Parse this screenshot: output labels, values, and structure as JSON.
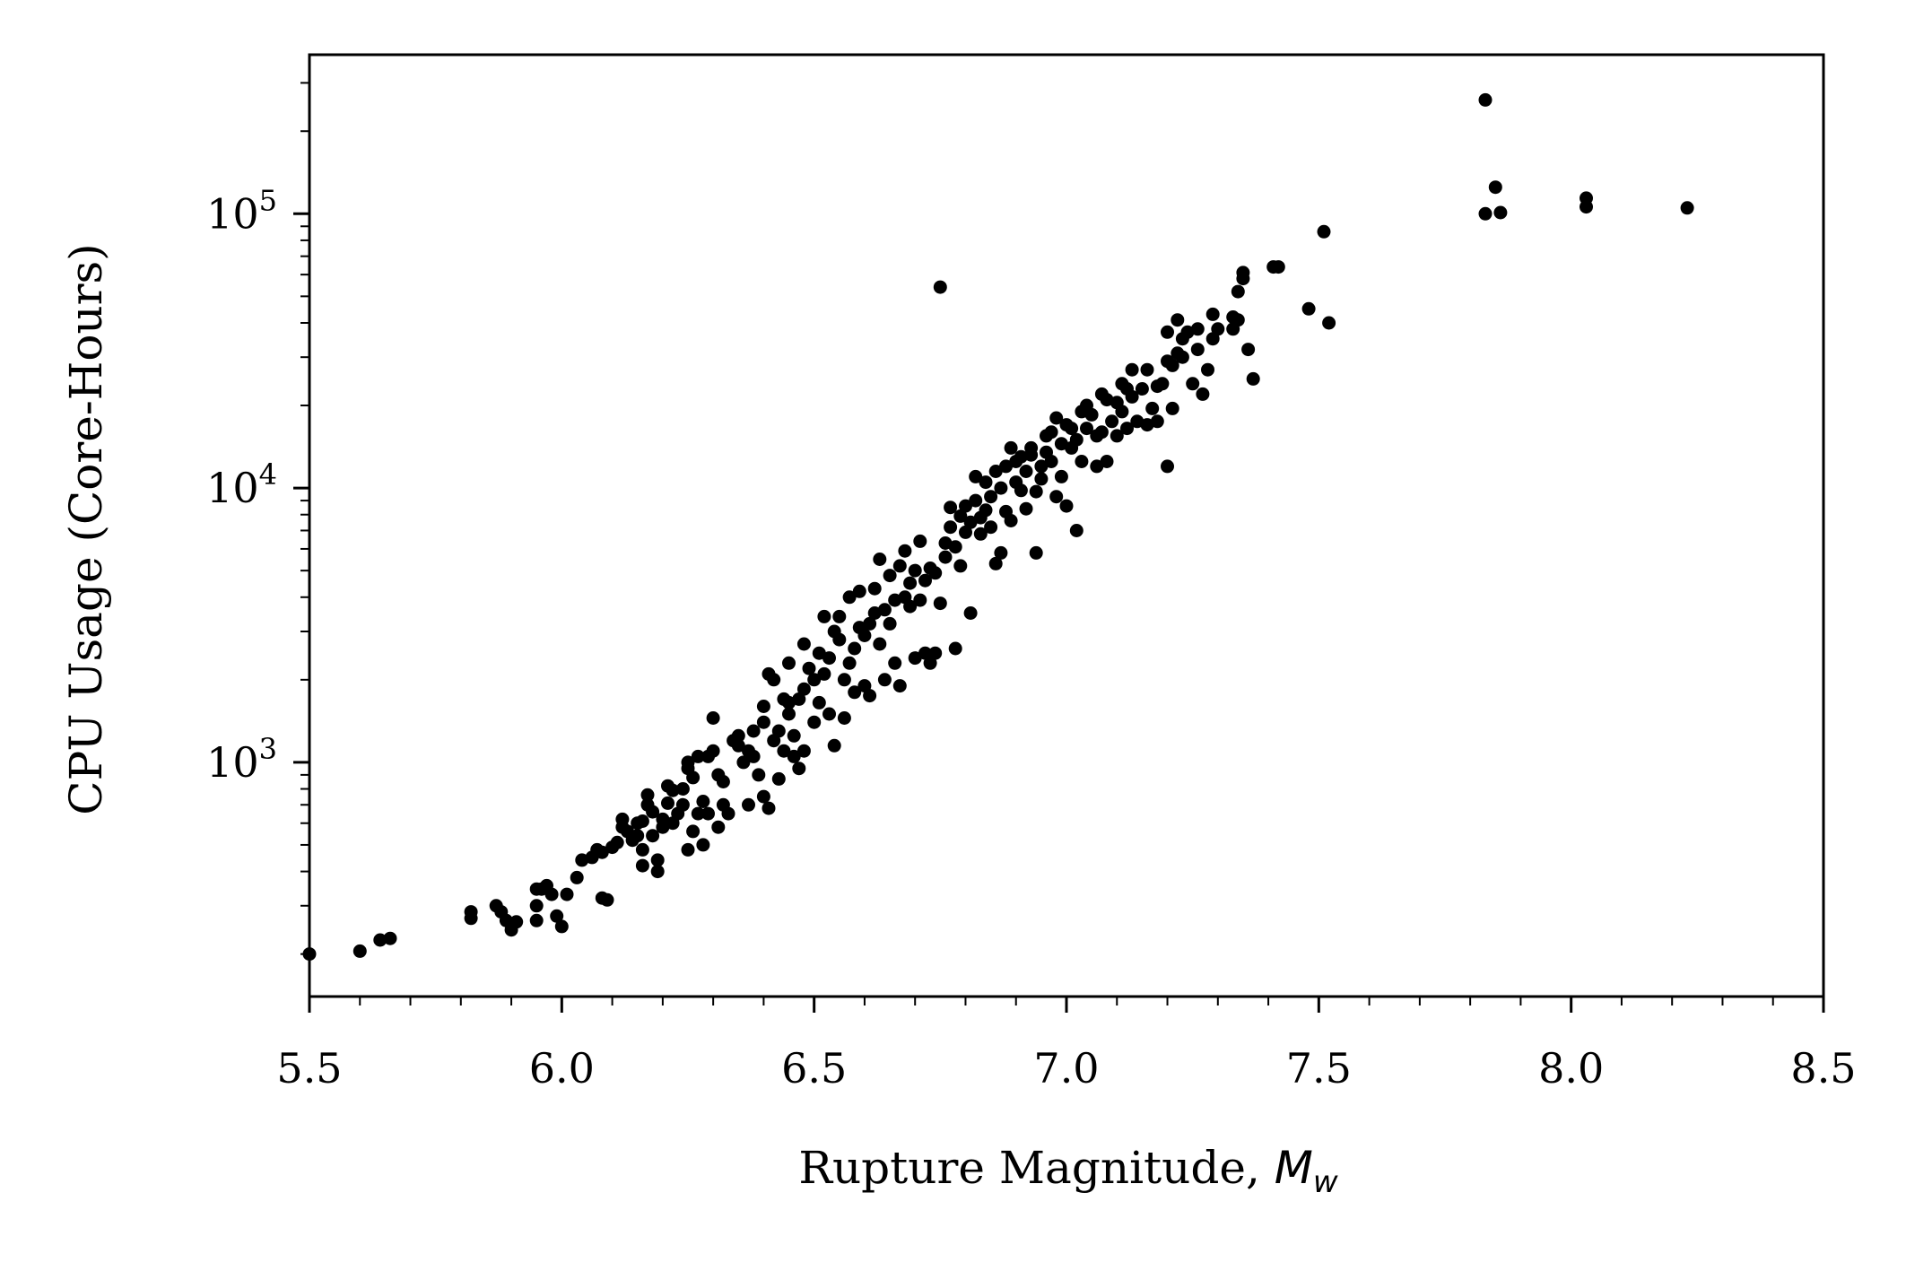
{
  "chart_data": {
    "type": "scatter",
    "title": "",
    "xlabel": "Rupture Magnitude, ",
    "xlabel_math": "M",
    "xlabel_sub": "w",
    "ylabel": "CPU Usage (Core-Hours)",
    "xlim": [
      5.5,
      8.5
    ],
    "ylim": [
      140,
      380000
    ],
    "y_scale": "log",
    "grid": false,
    "marker_color": "#000000",
    "x_ticks": [
      "5.5",
      "6.0",
      "6.5",
      "7.0",
      "7.5",
      "8.0",
      "8.5"
    ],
    "y_ticks": [
      {
        "base": "10",
        "exp": "3",
        "value": 1000
      },
      {
        "base": "10",
        "exp": "4",
        "value": 10000
      },
      {
        "base": "10",
        "exp": "5",
        "value": 100000
      }
    ],
    "series": [
      {
        "points": [
          [
            5.5,
            200
          ],
          [
            5.6,
            205
          ],
          [
            5.64,
            225
          ],
          [
            5.66,
            228
          ],
          [
            5.82,
            270
          ],
          [
            5.82,
            285
          ],
          [
            5.87,
            300
          ],
          [
            5.88,
            285
          ],
          [
            5.89,
            265
          ],
          [
            5.9,
            245
          ],
          [
            5.91,
            262
          ],
          [
            5.95,
            265
          ],
          [
            5.95,
            300
          ],
          [
            5.95,
            345
          ],
          [
            5.96,
            345
          ],
          [
            5.97,
            355
          ],
          [
            5.98,
            330
          ],
          [
            5.99,
            275
          ],
          [
            6.0,
            252
          ],
          [
            6.01,
            330
          ],
          [
            6.03,
            380
          ],
          [
            6.04,
            440
          ],
          [
            6.06,
            450
          ],
          [
            6.07,
            480
          ],
          [
            6.08,
            470
          ],
          [
            6.08,
            320
          ],
          [
            6.09,
            315
          ],
          [
            6.1,
            490
          ],
          [
            6.11,
            510
          ],
          [
            6.12,
            580
          ],
          [
            6.12,
            620
          ],
          [
            6.13,
            560
          ],
          [
            6.14,
            520
          ],
          [
            6.15,
            540
          ],
          [
            6.15,
            600
          ],
          [
            6.16,
            610
          ],
          [
            6.16,
            480
          ],
          [
            6.16,
            420
          ],
          [
            6.17,
            700
          ],
          [
            6.17,
            760
          ],
          [
            6.18,
            540
          ],
          [
            6.18,
            660
          ],
          [
            6.19,
            400
          ],
          [
            6.19,
            440
          ],
          [
            6.2,
            580
          ],
          [
            6.2,
            620
          ],
          [
            6.21,
            820
          ],
          [
            6.21,
            710
          ],
          [
            6.22,
            790
          ],
          [
            6.22,
            600
          ],
          [
            6.23,
            650
          ],
          [
            6.24,
            700
          ],
          [
            6.24,
            800
          ],
          [
            6.25,
            950
          ],
          [
            6.25,
            1000
          ],
          [
            6.25,
            480
          ],
          [
            6.26,
            560
          ],
          [
            6.26,
            880
          ],
          [
            6.27,
            650
          ],
          [
            6.27,
            1050
          ],
          [
            6.28,
            720
          ],
          [
            6.28,
            500
          ],
          [
            6.29,
            650
          ],
          [
            6.29,
            1050
          ],
          [
            6.3,
            1100
          ],
          [
            6.3,
            1450
          ],
          [
            6.31,
            900
          ],
          [
            6.31,
            580
          ],
          [
            6.32,
            700
          ],
          [
            6.32,
            850
          ],
          [
            6.33,
            650
          ],
          [
            6.34,
            1200
          ],
          [
            6.35,
            1150
          ],
          [
            6.35,
            1250
          ],
          [
            6.36,
            1000
          ],
          [
            6.37,
            1100
          ],
          [
            6.37,
            700
          ],
          [
            6.38,
            1050
          ],
          [
            6.38,
            1300
          ],
          [
            6.39,
            900
          ],
          [
            6.4,
            1600
          ],
          [
            6.4,
            1400
          ],
          [
            6.4,
            750
          ],
          [
            6.41,
            2100
          ],
          [
            6.41,
            680
          ],
          [
            6.42,
            1200
          ],
          [
            6.42,
            2000
          ],
          [
            6.43,
            1300
          ],
          [
            6.43,
            870
          ],
          [
            6.44,
            1700
          ],
          [
            6.44,
            1100
          ],
          [
            6.45,
            1650
          ],
          [
            6.45,
            1500
          ],
          [
            6.45,
            2300
          ],
          [
            6.46,
            1050
          ],
          [
            6.46,
            1250
          ],
          [
            6.47,
            1700
          ],
          [
            6.47,
            950
          ],
          [
            6.48,
            1850
          ],
          [
            6.48,
            2700
          ],
          [
            6.48,
            1100
          ],
          [
            6.49,
            2200
          ],
          [
            6.5,
            1400
          ],
          [
            6.5,
            2000
          ],
          [
            6.51,
            1650
          ],
          [
            6.51,
            2500
          ],
          [
            6.52,
            3400
          ],
          [
            6.52,
            2100
          ],
          [
            6.53,
            1500
          ],
          [
            6.53,
            2400
          ],
          [
            6.54,
            3000
          ],
          [
            6.54,
            1150
          ],
          [
            6.55,
            2800
          ],
          [
            6.55,
            3400
          ],
          [
            6.56,
            2000
          ],
          [
            6.56,
            1450
          ],
          [
            6.57,
            2300
          ],
          [
            6.57,
            4000
          ],
          [
            6.58,
            2600
          ],
          [
            6.58,
            1800
          ],
          [
            6.59,
            3100
          ],
          [
            6.59,
            4200
          ],
          [
            6.6,
            2900
          ],
          [
            6.6,
            1900
          ],
          [
            6.61,
            3200
          ],
          [
            6.61,
            1750
          ],
          [
            6.62,
            3500
          ],
          [
            6.62,
            4300
          ],
          [
            6.63,
            2700
          ],
          [
            6.63,
            5500
          ],
          [
            6.64,
            3600
          ],
          [
            6.64,
            2000
          ],
          [
            6.65,
            3200
          ],
          [
            6.65,
            4800
          ],
          [
            6.66,
            3900
          ],
          [
            6.66,
            2300
          ],
          [
            6.67,
            5200
          ],
          [
            6.67,
            1900
          ],
          [
            6.68,
            4000
          ],
          [
            6.68,
            5900
          ],
          [
            6.69,
            3700
          ],
          [
            6.69,
            4500
          ],
          [
            6.7,
            5000
          ],
          [
            6.7,
            2400
          ],
          [
            6.71,
            6400
          ],
          [
            6.71,
            3900
          ],
          [
            6.72,
            2500
          ],
          [
            6.72,
            4600
          ],
          [
            6.73,
            5100
          ],
          [
            6.73,
            2300
          ],
          [
            6.74,
            4900
          ],
          [
            6.74,
            2500
          ],
          [
            6.75,
            54000
          ],
          [
            6.75,
            3800
          ],
          [
            6.76,
            5600
          ],
          [
            6.76,
            6300
          ],
          [
            6.77,
            7200
          ],
          [
            6.77,
            8500
          ],
          [
            6.78,
            6100
          ],
          [
            6.78,
            2600
          ],
          [
            6.79,
            7900
          ],
          [
            6.79,
            5200
          ],
          [
            6.8,
            6900
          ],
          [
            6.8,
            8600
          ],
          [
            6.81,
            7500
          ],
          [
            6.81,
            3500
          ],
          [
            6.82,
            9000
          ],
          [
            6.82,
            11000
          ],
          [
            6.83,
            6800
          ],
          [
            6.83,
            7800
          ],
          [
            6.84,
            8300
          ],
          [
            6.84,
            10500
          ],
          [
            6.85,
            9300
          ],
          [
            6.85,
            7200
          ],
          [
            6.86,
            5300
          ],
          [
            6.86,
            11500
          ],
          [
            6.87,
            10000
          ],
          [
            6.87,
            5800
          ],
          [
            6.88,
            12000
          ],
          [
            6.88,
            8200
          ],
          [
            6.89,
            14000
          ],
          [
            6.89,
            7600
          ],
          [
            6.9,
            10500
          ],
          [
            6.9,
            12500
          ],
          [
            6.91,
            9800
          ],
          [
            6.91,
            13000
          ],
          [
            6.92,
            11500
          ],
          [
            6.92,
            8400
          ],
          [
            6.93,
            13200
          ],
          [
            6.93,
            14000
          ],
          [
            6.94,
            5800
          ],
          [
            6.94,
            9700
          ],
          [
            6.95,
            12000
          ],
          [
            6.95,
            10800
          ],
          [
            6.96,
            13500
          ],
          [
            6.96,
            15500
          ],
          [
            6.97,
            16000
          ],
          [
            6.97,
            12500
          ],
          [
            6.98,
            18000
          ],
          [
            6.98,
            9300
          ],
          [
            6.99,
            14500
          ],
          [
            6.99,
            11000
          ],
          [
            7.0,
            17000
          ],
          [
            7.0,
            8600
          ],
          [
            7.01,
            16500
          ],
          [
            7.01,
            14000
          ],
          [
            7.02,
            15000
          ],
          [
            7.02,
            7000
          ],
          [
            7.03,
            19000
          ],
          [
            7.03,
            12500
          ],
          [
            7.04,
            20000
          ],
          [
            7.04,
            16500
          ],
          [
            7.05,
            18500
          ],
          [
            7.06,
            15500
          ],
          [
            7.06,
            12000
          ],
          [
            7.07,
            22000
          ],
          [
            7.07,
            16000
          ],
          [
            7.08,
            12500
          ],
          [
            7.08,
            21000
          ],
          [
            7.09,
            17500
          ],
          [
            7.1,
            20500
          ],
          [
            7.1,
            15500
          ],
          [
            7.11,
            24000
          ],
          [
            7.11,
            19000
          ],
          [
            7.12,
            23000
          ],
          [
            7.12,
            16500
          ],
          [
            7.13,
            27000
          ],
          [
            7.13,
            21500
          ],
          [
            7.14,
            17500
          ],
          [
            7.15,
            23000
          ],
          [
            7.16,
            27000
          ],
          [
            7.16,
            17000
          ],
          [
            7.17,
            19500
          ],
          [
            7.18,
            23500
          ],
          [
            7.18,
            17500
          ],
          [
            7.19,
            24000
          ],
          [
            7.2,
            12000
          ],
          [
            7.2,
            37000
          ],
          [
            7.2,
            29000
          ],
          [
            7.21,
            28000
          ],
          [
            7.21,
            19500
          ],
          [
            7.22,
            31000
          ],
          [
            7.22,
            41000
          ],
          [
            7.23,
            35000
          ],
          [
            7.23,
            30000
          ],
          [
            7.24,
            37000
          ],
          [
            7.25,
            24000
          ],
          [
            7.26,
            38000
          ],
          [
            7.26,
            32000
          ],
          [
            7.27,
            22000
          ],
          [
            7.28,
            27000
          ],
          [
            7.29,
            43000
          ],
          [
            7.29,
            35000
          ],
          [
            7.3,
            38000
          ],
          [
            7.33,
            42000
          ],
          [
            7.33,
            38000
          ],
          [
            7.34,
            52000
          ],
          [
            7.34,
            41000
          ],
          [
            7.35,
            58000
          ],
          [
            7.35,
            61000
          ],
          [
            7.36,
            32000
          ],
          [
            7.37,
            25000
          ],
          [
            7.41,
            64000
          ],
          [
            7.42,
            64000
          ],
          [
            7.48,
            45000
          ],
          [
            7.51,
            86000
          ],
          [
            7.52,
            40000
          ],
          [
            7.83,
            260000
          ],
          [
            7.83,
            100000
          ],
          [
            7.85,
            125000
          ],
          [
            7.86,
            101000
          ],
          [
            8.03,
            114000
          ],
          [
            8.03,
            106000
          ],
          [
            8.23,
            105000
          ]
        ]
      }
    ]
  }
}
